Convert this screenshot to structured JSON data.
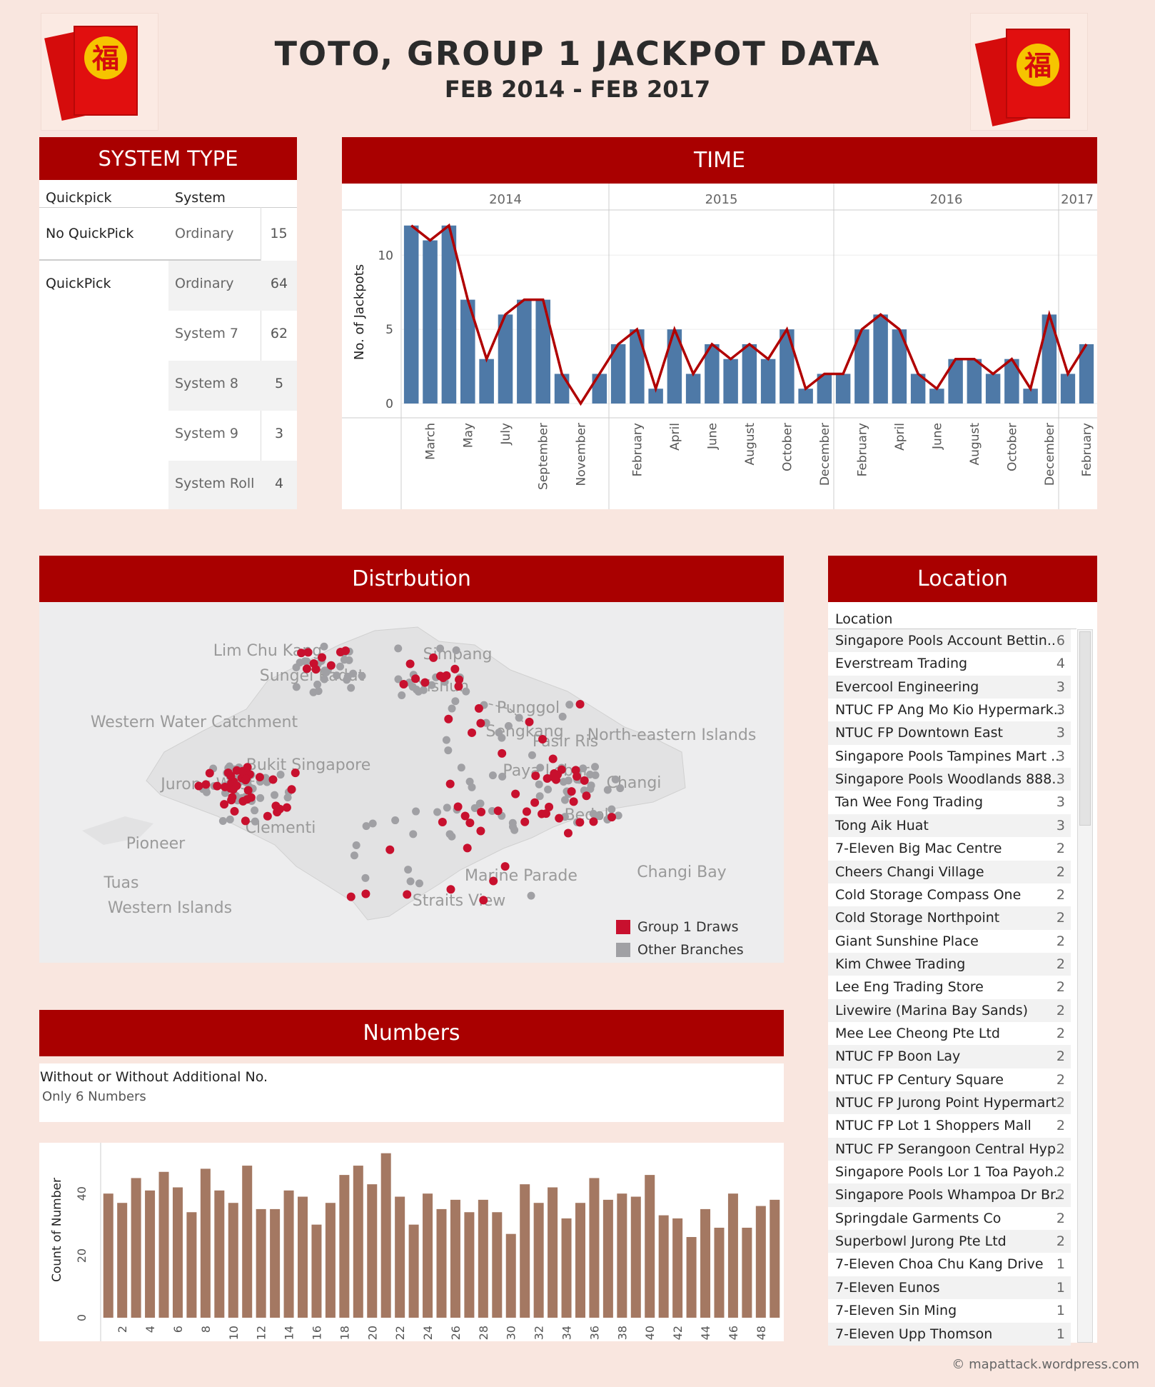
{
  "title": "TOTO, GROUP 1 JACKPOT DATA",
  "subtitle": "FEB 2014 - FEB 2017",
  "credit": "© mapattack.wordpress.com",
  "colors": {
    "header_red": "#a90000",
    "bar_blue": "#4e79a7",
    "line_red": "#b00000",
    "bar_brown": "#a47862",
    "dot_red": "#c8102e",
    "dot_grey": "#a0a0a4"
  },
  "system_type": {
    "header": "SYSTEM TYPE",
    "col_quickpick": "Quickpick",
    "col_system": "System",
    "groups": [
      {
        "quickpick": "No QuickPick",
        "rows": [
          {
            "system": "Ordinary",
            "value": "15"
          }
        ]
      },
      {
        "quickpick": "QuickPick",
        "rows": [
          {
            "system": "Ordinary",
            "value": "64"
          },
          {
            "system": "System 7",
            "value": "62"
          },
          {
            "system": "System 8",
            "value": "5"
          },
          {
            "system": "System 9",
            "value": "3"
          },
          {
            "system": "System Roll",
            "value": "4"
          }
        ]
      }
    ]
  },
  "time": {
    "header": "TIME"
  },
  "distribution": {
    "header": "Distrbution",
    "map_labels": [
      "Lim Chu Kang",
      "Sungei Kadut",
      "Western Water Catchment",
      "Bukit Singapore",
      "Jurong West",
      "Clementi",
      "Pioneer",
      "Tuas",
      "Western Islands",
      "Simpang",
      "Yishun",
      "Punggol",
      "Sengkang",
      "Pasir Ris",
      "Paya Lebar",
      "Changi",
      "North-eastern Islands",
      "Changi Bay",
      "Marine Parade",
      "Straits View",
      "Bedok"
    ],
    "legend": [
      {
        "label": "Group 1 Draws",
        "color": "#c8102e"
      },
      {
        "label": "Other Branches",
        "color": "#a0a0a4"
      }
    ]
  },
  "numbers": {
    "header": "Numbers",
    "filter_label": "Without or Without Additional No.",
    "filter_value": "Only 6 Numbers"
  },
  "location": {
    "header": "Location",
    "col_label": "Location",
    "rows": [
      {
        "name": "Singapore Pools Account Bettin..",
        "value": "6"
      },
      {
        "name": "Everstream Trading",
        "value": "4"
      },
      {
        "name": "Evercool Engineering",
        "value": "3"
      },
      {
        "name": "NTUC FP Ang Mo Kio Hypermark..",
        "value": "3"
      },
      {
        "name": "NTUC FP Downtown East",
        "value": "3"
      },
      {
        "name": "Singapore Pools Tampines Mart ..",
        "value": "3"
      },
      {
        "name": "Singapore Pools Woodlands 888..",
        "value": "3"
      },
      {
        "name": "Tan Wee Fong Trading",
        "value": "3"
      },
      {
        "name": "Tong Aik Huat",
        "value": "3"
      },
      {
        "name": "7-Eleven Big Mac Centre",
        "value": "2"
      },
      {
        "name": "Cheers Changi Village",
        "value": "2"
      },
      {
        "name": "Cold Storage Compass One",
        "value": "2"
      },
      {
        "name": "Cold Storage Northpoint",
        "value": "2"
      },
      {
        "name": "Giant Sunshine Place",
        "value": "2"
      },
      {
        "name": "Kim Chwee Trading",
        "value": "2"
      },
      {
        "name": "Lee Eng Trading Store",
        "value": "2"
      },
      {
        "name": "Livewire (Marina Bay Sands)",
        "value": "2"
      },
      {
        "name": "Mee Lee Cheong Pte Ltd",
        "value": "2"
      },
      {
        "name": "NTUC FP Boon Lay",
        "value": "2"
      },
      {
        "name": "NTUC FP Century Square",
        "value": "2"
      },
      {
        "name": "NTUC FP Jurong Point Hypermart",
        "value": "2"
      },
      {
        "name": "NTUC FP Lot 1 Shoppers Mall",
        "value": "2"
      },
      {
        "name": "NTUC FP Serangoon Central Hyp..",
        "value": "2"
      },
      {
        "name": "Singapore Pools Lor 1 Toa Payoh..",
        "value": "2"
      },
      {
        "name": "Singapore Pools Whampoa Dr Br..",
        "value": "2"
      },
      {
        "name": "Springdale Garments Co",
        "value": "2"
      },
      {
        "name": "Superbowl Jurong Pte Ltd",
        "value": "2"
      },
      {
        "name": "7-Eleven Choa Chu Kang Drive",
        "value": "1"
      },
      {
        "name": "7-Eleven Eunos",
        "value": "1"
      },
      {
        "name": "7-Eleven Sin Ming",
        "value": "1"
      },
      {
        "name": "7-Eleven Upp Thomson",
        "value": "1"
      }
    ]
  },
  "chart_data": [
    {
      "type": "bar",
      "ylabel": "No. of Jackpots",
      "ylim": [
        0,
        13
      ],
      "yticks": [
        0,
        5,
        10
      ],
      "years": [
        {
          "label": "2014",
          "months": [
            "Feb",
            "Mar",
            "Apr",
            "May",
            "Jun",
            "Jul",
            "Aug",
            "Sep",
            "Oct",
            "Nov",
            "Dec"
          ],
          "values": [
            12,
            11,
            12,
            7,
            3,
            6,
            7,
            7,
            2,
            0,
            2
          ]
        },
        {
          "label": "2015",
          "months": [
            "Jan",
            "Feb",
            "Mar",
            "Apr",
            "May",
            "Jun",
            "Jul",
            "Aug",
            "Sep",
            "Oct",
            "Nov",
            "Dec"
          ],
          "values": [
            4,
            5,
            1,
            5,
            2,
            4,
            3,
            4,
            3,
            5,
            1,
            2
          ]
        },
        {
          "label": "2016",
          "months": [
            "Jan",
            "Feb",
            "Mar",
            "Apr",
            "May",
            "Jun",
            "Jul",
            "Aug",
            "Sep",
            "Oct",
            "Nov",
            "Dec"
          ],
          "values": [
            2,
            5,
            6,
            5,
            2,
            1,
            3,
            3,
            2,
            3,
            1,
            6
          ]
        },
        {
          "label": "2017",
          "months": [
            "Jan",
            "Feb"
          ],
          "values": [
            2,
            4
          ]
        }
      ],
      "tick_labels": {
        "2014": [
          "March",
          "May",
          "July",
          "September",
          "November"
        ],
        "2015": [
          "February",
          "April",
          "June",
          "August",
          "October",
          "December"
        ],
        "2016": [
          "February",
          "April",
          "June",
          "August",
          "October",
          "December"
        ],
        "2017": [
          "February"
        ]
      },
      "overlay": "line"
    },
    {
      "type": "bar",
      "ylabel": "Count of Number",
      "ylim": [
        0,
        55
      ],
      "yticks": [
        0,
        20,
        40
      ],
      "x": [
        1,
        2,
        3,
        4,
        5,
        6,
        7,
        8,
        9,
        10,
        11,
        12,
        13,
        14,
        15,
        16,
        17,
        18,
        19,
        20,
        21,
        22,
        23,
        24,
        25,
        26,
        27,
        28,
        29,
        30,
        31,
        32,
        33,
        34,
        35,
        36,
        37,
        38,
        39,
        40,
        41,
        42,
        43,
        44,
        45,
        46,
        47,
        48,
        49
      ],
      "x_tick_labels": [
        "2",
        "4",
        "6",
        "8",
        "10",
        "12",
        "14",
        "16",
        "18",
        "20",
        "22",
        "24",
        "26",
        "28",
        "30",
        "32",
        "34",
        "36",
        "38",
        "40",
        "42",
        "44",
        "46",
        "48"
      ],
      "values": [
        40,
        37,
        45,
        41,
        47,
        42,
        34,
        48,
        41,
        37,
        49,
        35,
        35,
        41,
        39,
        30,
        37,
        46,
        49,
        43,
        53,
        39,
        30,
        40,
        35,
        38,
        34,
        38,
        34,
        27,
        43,
        37,
        42,
        32,
        37,
        45,
        38,
        40,
        39,
        46,
        33,
        32,
        26,
        35,
        29,
        40,
        29,
        36,
        38
      ]
    }
  ]
}
